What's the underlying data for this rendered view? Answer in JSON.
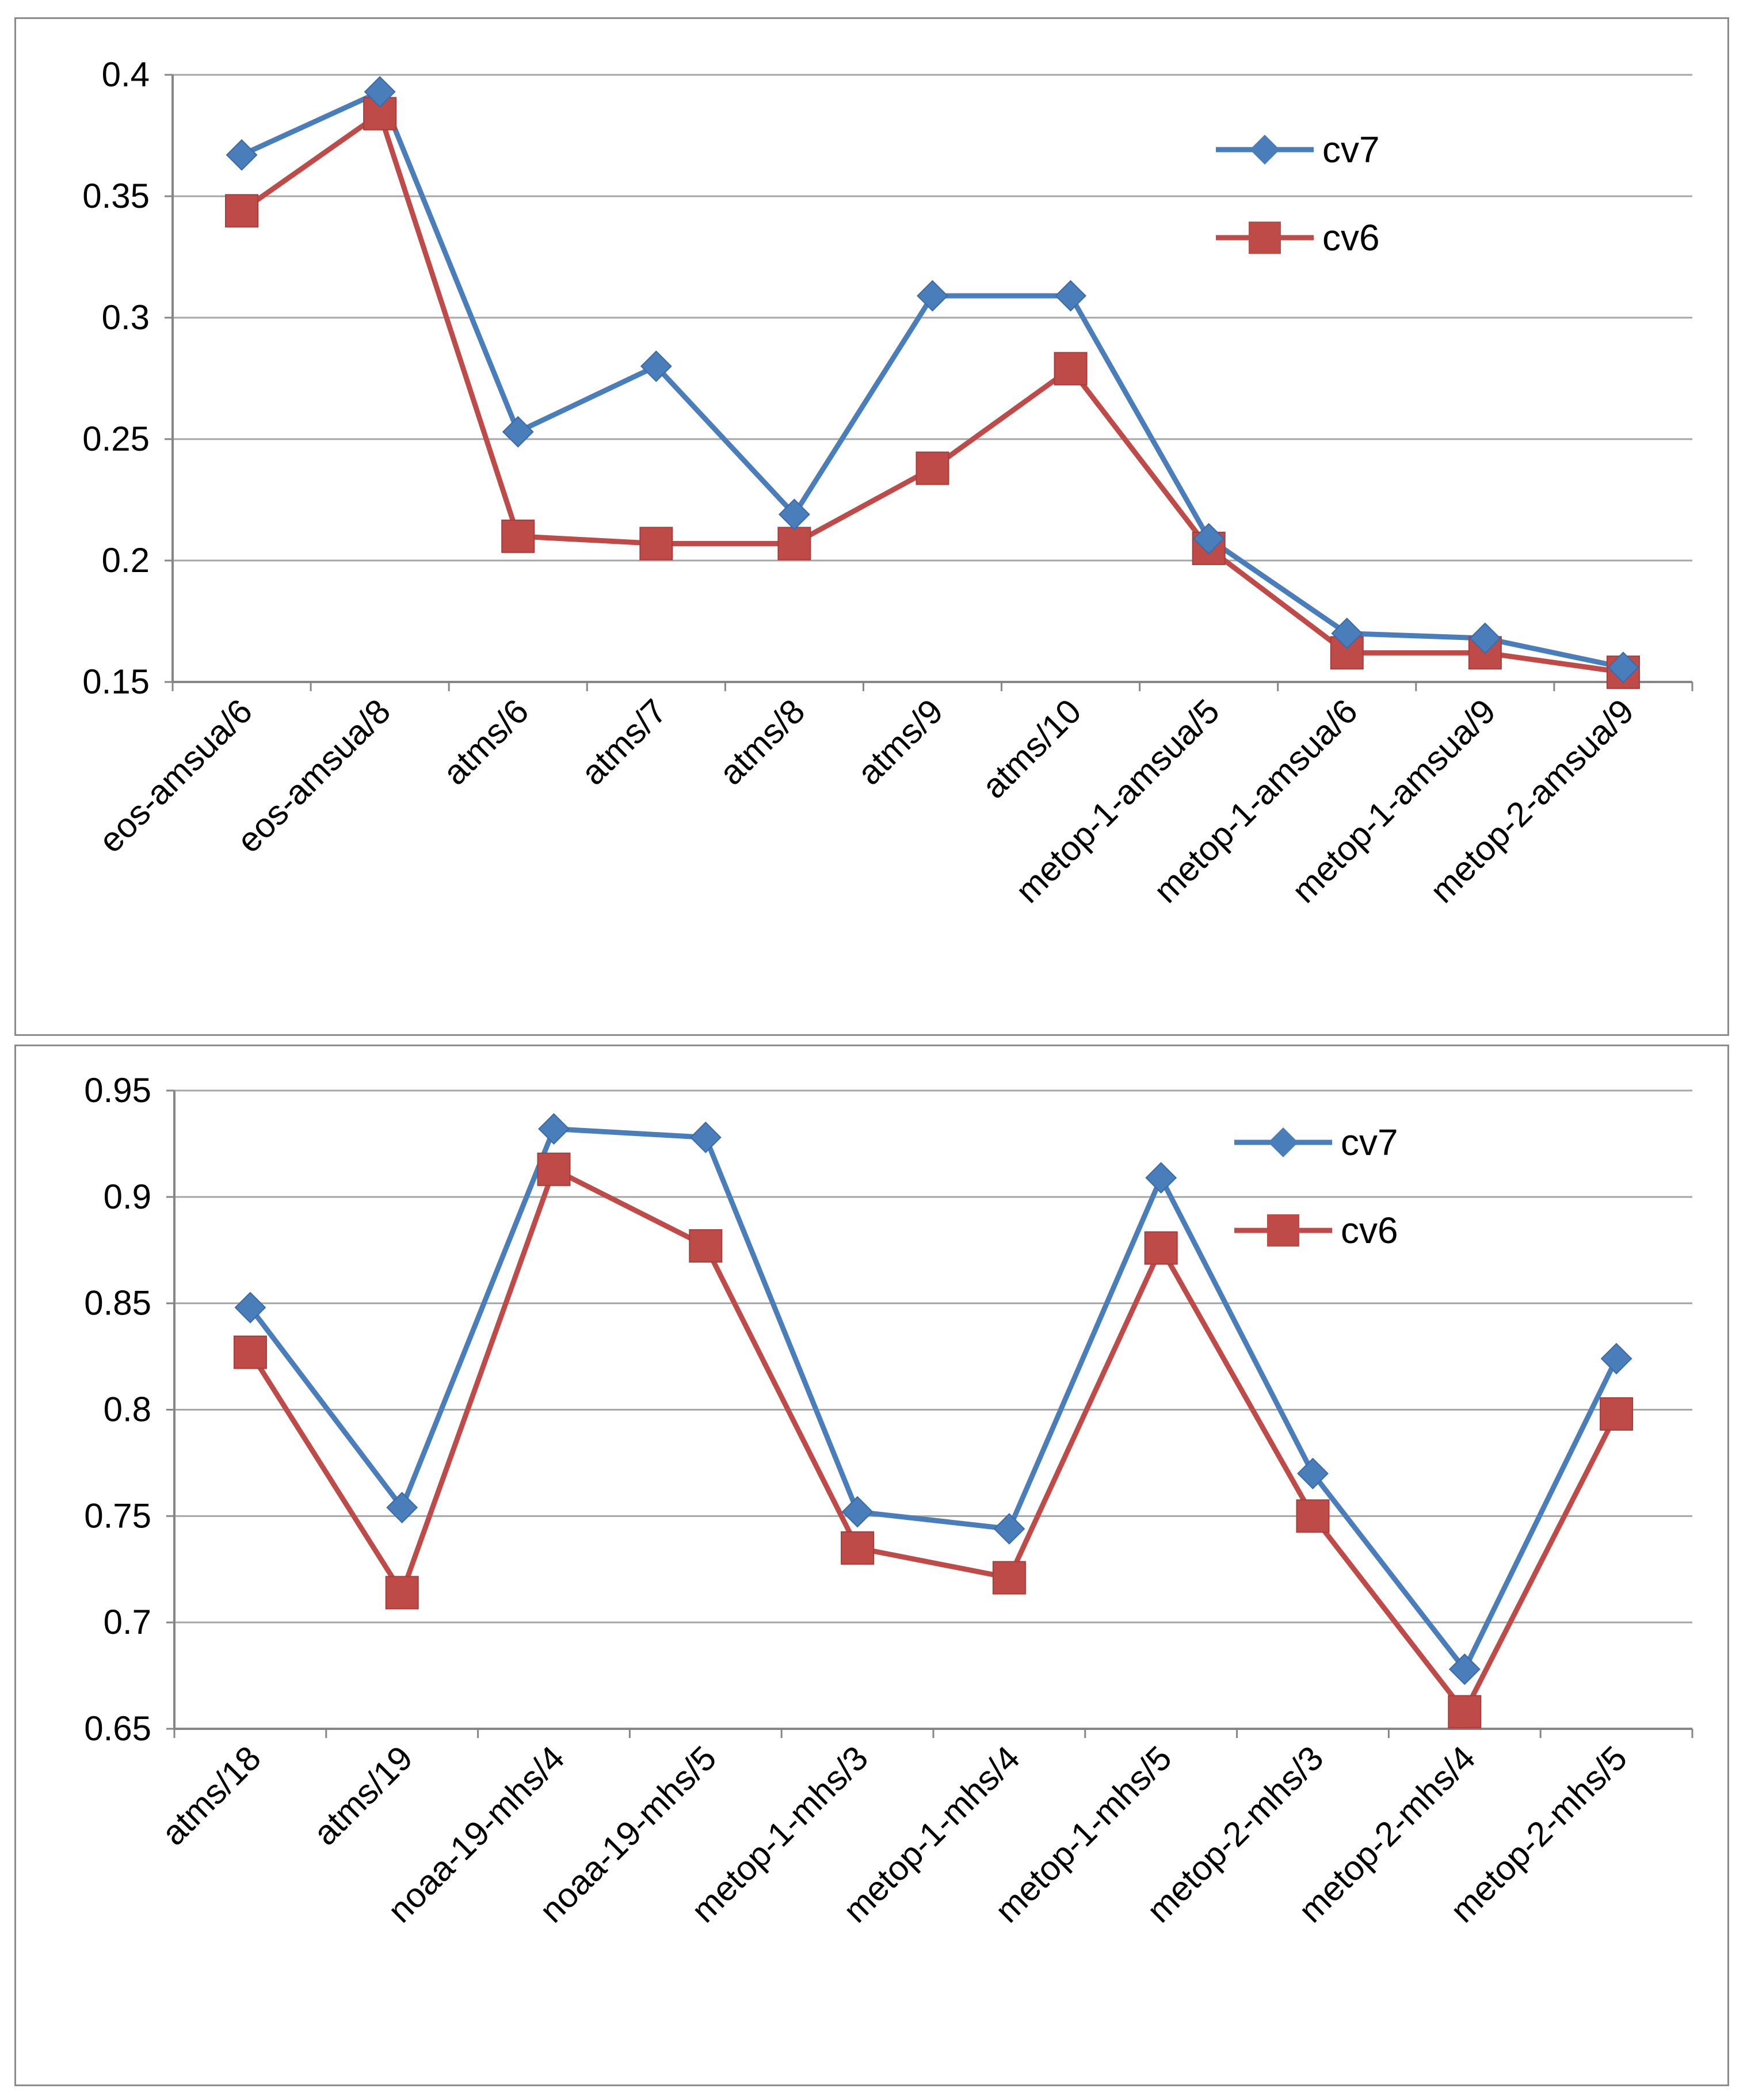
{
  "chart_data": [
    {
      "type": "line",
      "title": "",
      "xlabel": "",
      "ylabel": "",
      "categories": [
        "eos-amsua/6",
        "eos-amsua/8",
        "atms/6",
        "atms/7",
        "atms/8",
        "atms/9",
        "atms/10",
        "metop-1-amsua/5",
        "metop-1-amsua/6",
        "metop-1-amsua/9",
        "metop-2-amsua/9"
      ],
      "ylim": [
        0.15,
        0.4
      ],
      "yticks": [
        0.15,
        0.2,
        0.25,
        0.3,
        0.35,
        0.4
      ],
      "ytick_labels": [
        "0.15",
        "0.2",
        "0.25",
        "0.3",
        "0.35",
        "0.4"
      ],
      "grid": true,
      "legend_position": "top-right",
      "series": [
        {
          "name": "cv7",
          "color": "#4a7ebb",
          "marker": "diamond",
          "values": [
            0.367,
            0.393,
            0.253,
            0.28,
            0.219,
            0.309,
            0.309,
            0.209,
            0.17,
            0.168,
            0.156
          ]
        },
        {
          "name": "cv6",
          "color": "#be4b48",
          "marker": "square",
          "values": [
            0.344,
            0.384,
            0.21,
            0.207,
            0.207,
            0.238,
            0.279,
            0.205,
            0.162,
            0.162,
            0.154
          ]
        }
      ]
    },
    {
      "type": "line",
      "title": "",
      "xlabel": "",
      "ylabel": "",
      "categories": [
        "atms/18",
        "atms/19",
        "noaa-19-mhs/4",
        "noaa-19-mhs/5",
        "metop-1-mhs/3",
        "metop-1-mhs/4",
        "metop-1-mhs/5",
        "metop-2-mhs/3",
        "metop-2-mhs/4",
        "metop-2-mhs/5"
      ],
      "ylim": [
        0.65,
        0.95
      ],
      "yticks": [
        0.65,
        0.7,
        0.75,
        0.8,
        0.85,
        0.9,
        0.95
      ],
      "ytick_labels": [
        "0.65",
        "0.7",
        "0.75",
        "0.8",
        "0.85",
        "0.9",
        "0.95"
      ],
      "grid": true,
      "legend_position": "top-right",
      "series": [
        {
          "name": "cv7",
          "color": "#4a7ebb",
          "marker": "diamond",
          "values": [
            0.848,
            0.754,
            0.932,
            0.928,
            0.752,
            0.744,
            0.909,
            0.77,
            0.678,
            0.824
          ]
        },
        {
          "name": "cv6",
          "color": "#be4b48",
          "marker": "square",
          "values": [
            0.827,
            0.714,
            0.913,
            0.877,
            0.735,
            0.721,
            0.876,
            0.75,
            0.658,
            0.798
          ]
        }
      ]
    }
  ]
}
